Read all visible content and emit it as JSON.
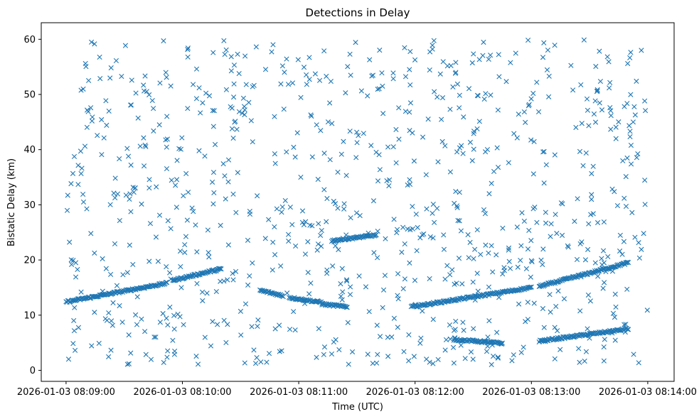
{
  "chart_data": {
    "type": "scatter",
    "title": "Detections in Delay",
    "xlabel": "Time (UTC)",
    "ylabel": "Bistatic Delay (km)",
    "x_ticks": [
      {
        "label": "2026-01-03 08:09:00",
        "t": 0
      },
      {
        "label": "2026-01-03 08:10:00",
        "t": 60
      },
      {
        "label": "2026-01-03 08:11:00",
        "t": 120
      },
      {
        "label": "2026-01-03 08:12:00",
        "t": 180
      },
      {
        "label": "2026-01-03 08:13:00",
        "t": 240
      },
      {
        "label": "2026-01-03 08:14:00",
        "t": 300
      }
    ],
    "y_ticks": [
      0,
      10,
      20,
      30,
      40,
      50,
      60
    ],
    "xlim_seconds_after_08:09:00": [
      -12.8,
      313.6
    ],
    "ylim": [
      -2,
      63
    ],
    "marker": "x",
    "color": "#1f77b4",
    "grid": false,
    "tracks": [
      {
        "t_start": 0,
        "t_end": 52,
        "y_start": 12.4,
        "y_end": 15.8
      },
      {
        "t_start": 55,
        "t_end": 80,
        "y_start": 16.3,
        "y_end": 18.4
      },
      {
        "t_start": 100,
        "t_end": 112,
        "y_start": 14.5,
        "y_end": 13.5
      },
      {
        "t_start": 115,
        "t_end": 132,
        "y_start": 13.2,
        "y_end": 12.3
      },
      {
        "t_start": 132,
        "t_end": 145,
        "y_start": 12.0,
        "y_end": 11.5
      },
      {
        "t_start": 137,
        "t_end": 160,
        "y_start": 23.5,
        "y_end": 24.5
      },
      {
        "t_start": 178,
        "t_end": 240,
        "y_start": 11.5,
        "y_end": 15.0
      },
      {
        "t_start": 200,
        "t_end": 225,
        "y_start": 5.6,
        "y_end": 4.9
      },
      {
        "t_start": 244,
        "t_end": 290,
        "y_start": 5.3,
        "y_end": 7.5
      },
      {
        "t_start": 244,
        "t_end": 290,
        "y_start": 15.2,
        "y_end": 19.5
      }
    ],
    "noise_points": 900,
    "noise_y_range": [
      1,
      60
    ]
  }
}
